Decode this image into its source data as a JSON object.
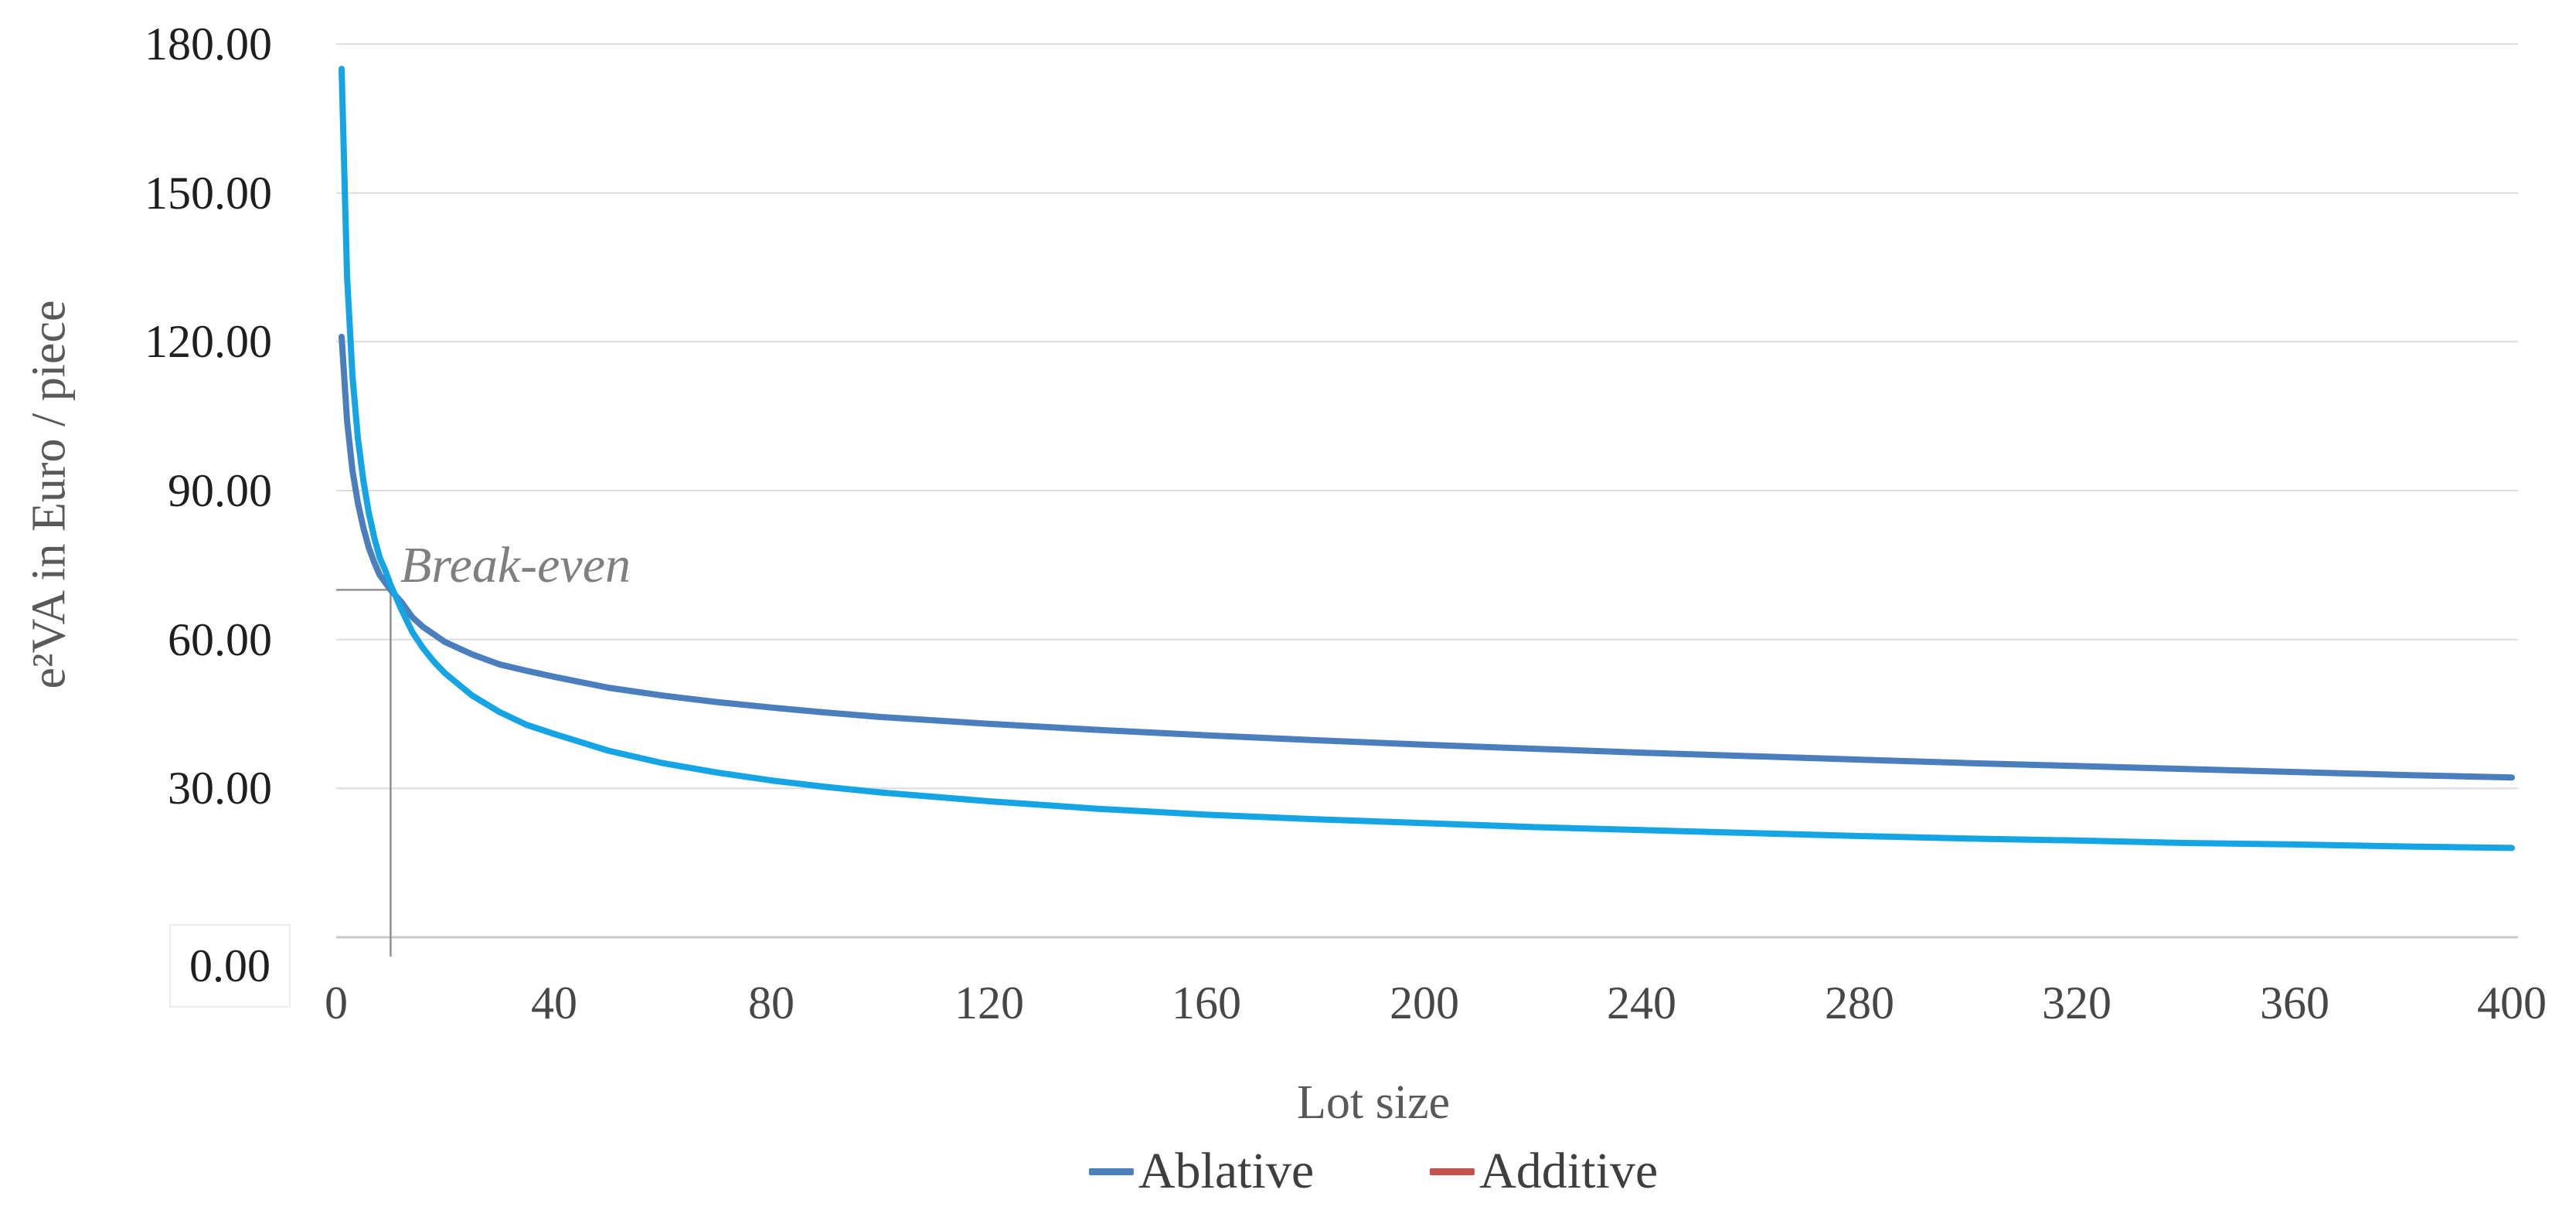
{
  "chart_data": {
    "type": "line",
    "title": "",
    "xlabel": "Lot size",
    "ylabel": "e²VA in Euro / piece",
    "xlim": [
      0,
      400
    ],
    "ylim": [
      0,
      180
    ],
    "x_ticks": [
      0,
      40,
      80,
      120,
      160,
      200,
      240,
      280,
      320,
      360,
      400
    ],
    "x_tick_labels": [
      "0",
      "40",
      "80",
      "120",
      "160",
      "200",
      "240",
      "280",
      "320",
      "360",
      "400"
    ],
    "y_ticks": [
      180,
      150,
      120,
      90,
      60,
      30,
      0
    ],
    "y_tick_labels": [
      "180.00",
      "150.00",
      "120.00",
      "90.00",
      "60.00",
      "30.00",
      "0.00"
    ],
    "grid": "horizontal-only",
    "annotation": {
      "label": "Break-even",
      "x": 10,
      "y": 70
    },
    "legend": {
      "position": "bottom-center",
      "entries": [
        {
          "label": "Ablative",
          "color": "#4a7ebd"
        },
        {
          "label": "Additive",
          "color": "#c3524e"
        }
      ]
    },
    "series": [
      {
        "name": "Ablative",
        "color": "#4a7ebd",
        "plotted_color": "#4a7ebd",
        "x": [
          1,
          2,
          3,
          4,
          5,
          6,
          7,
          8,
          9,
          10,
          12,
          14,
          16,
          18,
          20,
          25,
          30,
          35,
          40,
          50,
          60,
          70,
          80,
          90,
          100,
          120,
          140,
          160,
          180,
          200,
          220,
          240,
          260,
          280,
          300,
          320,
          340,
          360,
          380,
          400
        ],
        "y": [
          121,
          104,
          94,
          87.5,
          82.5,
          78.5,
          75.5,
          73,
          71.5,
          70,
          67.5,
          64.5,
          62.5,
          61,
          59.5,
          57,
          55,
          53.7,
          52.5,
          50.3,
          48.7,
          47.4,
          46.3,
          45.3,
          44.4,
          43,
          41.8,
          40.7,
          39.7,
          38.8,
          38,
          37.2,
          36.5,
          35.8,
          35.1,
          34.5,
          33.9,
          33.3,
          32.7,
          32.2
        ]
      },
      {
        "name": "Additive",
        "color": "#c3524e",
        "plotted_color": "#15a4e4",
        "legend_color": "#c3524e",
        "x": [
          1,
          2,
          3,
          4,
          5,
          6,
          7,
          8,
          9,
          10,
          12,
          14,
          16,
          18,
          20,
          25,
          30,
          35,
          40,
          50,
          60,
          70,
          80,
          90,
          100,
          120,
          140,
          160,
          180,
          200,
          220,
          240,
          260,
          280,
          300,
          320,
          340,
          360,
          380,
          400
        ],
        "y": [
          175,
          133,
          113,
          100.5,
          92,
          85.5,
          80.5,
          76.5,
          74,
          71,
          66,
          61.5,
          58.2,
          55.5,
          53.2,
          48.7,
          45.4,
          42.8,
          41,
          37.6,
          35.1,
          33.2,
          31.6,
          30.3,
          29.2,
          27.4,
          25.9,
          24.7,
          23.8,
          23,
          22.2,
          21.6,
          21,
          20.4,
          19.9,
          19.5,
          19,
          18.7,
          18.3,
          18
        ]
      }
    ],
    "colors": {
      "background": "#ffffff",
      "grid": "#dcdcdc",
      "axis": "#c8c8c8",
      "y_tick_text": "#1f1f1f",
      "x_tick_text": "#474747",
      "axis_title_text": "#595959",
      "annotation_line": "#8f8f8f",
      "annotation_text": "#7f7f7f",
      "legend_text": "#3f3f3f"
    }
  }
}
